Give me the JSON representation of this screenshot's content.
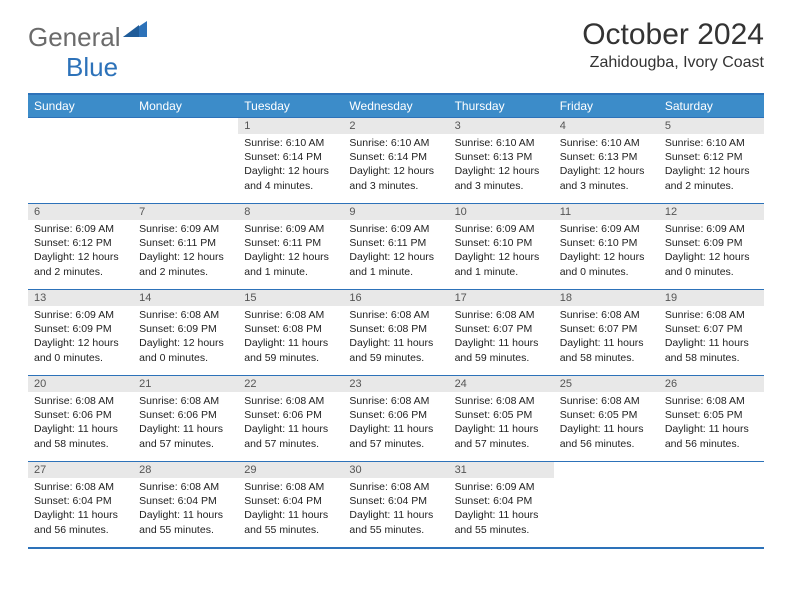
{
  "logo": {
    "word1": "General",
    "word2": "Blue"
  },
  "title": "October 2024",
  "location": "Zahidougba, Ivory Coast",
  "colors": {
    "header_bg": "#3c8cc9",
    "border": "#2d72b9",
    "daynum_bg": "#e8e8e8",
    "logo_gray": "#6b6b6b",
    "logo_blue": "#2d72b9"
  },
  "weekdays": [
    "Sunday",
    "Monday",
    "Tuesday",
    "Wednesday",
    "Thursday",
    "Friday",
    "Saturday"
  ],
  "weeks": [
    [
      null,
      null,
      {
        "n": "1",
        "sunrise": "6:10 AM",
        "sunset": "6:14 PM",
        "daylight": "12 hours and 4 minutes."
      },
      {
        "n": "2",
        "sunrise": "6:10 AM",
        "sunset": "6:14 PM",
        "daylight": "12 hours and 3 minutes."
      },
      {
        "n": "3",
        "sunrise": "6:10 AM",
        "sunset": "6:13 PM",
        "daylight": "12 hours and 3 minutes."
      },
      {
        "n": "4",
        "sunrise": "6:10 AM",
        "sunset": "6:13 PM",
        "daylight": "12 hours and 3 minutes."
      },
      {
        "n": "5",
        "sunrise": "6:10 AM",
        "sunset": "6:12 PM",
        "daylight": "12 hours and 2 minutes."
      }
    ],
    [
      {
        "n": "6",
        "sunrise": "6:09 AM",
        "sunset": "6:12 PM",
        "daylight": "12 hours and 2 minutes."
      },
      {
        "n": "7",
        "sunrise": "6:09 AM",
        "sunset": "6:11 PM",
        "daylight": "12 hours and 2 minutes."
      },
      {
        "n": "8",
        "sunrise": "6:09 AM",
        "sunset": "6:11 PM",
        "daylight": "12 hours and 1 minute."
      },
      {
        "n": "9",
        "sunrise": "6:09 AM",
        "sunset": "6:11 PM",
        "daylight": "12 hours and 1 minute."
      },
      {
        "n": "10",
        "sunrise": "6:09 AM",
        "sunset": "6:10 PM",
        "daylight": "12 hours and 1 minute."
      },
      {
        "n": "11",
        "sunrise": "6:09 AM",
        "sunset": "6:10 PM",
        "daylight": "12 hours and 0 minutes."
      },
      {
        "n": "12",
        "sunrise": "6:09 AM",
        "sunset": "6:09 PM",
        "daylight": "12 hours and 0 minutes."
      }
    ],
    [
      {
        "n": "13",
        "sunrise": "6:09 AM",
        "sunset": "6:09 PM",
        "daylight": "12 hours and 0 minutes."
      },
      {
        "n": "14",
        "sunrise": "6:08 AM",
        "sunset": "6:09 PM",
        "daylight": "12 hours and 0 minutes."
      },
      {
        "n": "15",
        "sunrise": "6:08 AM",
        "sunset": "6:08 PM",
        "daylight": "11 hours and 59 minutes."
      },
      {
        "n": "16",
        "sunrise": "6:08 AM",
        "sunset": "6:08 PM",
        "daylight": "11 hours and 59 minutes."
      },
      {
        "n": "17",
        "sunrise": "6:08 AM",
        "sunset": "6:07 PM",
        "daylight": "11 hours and 59 minutes."
      },
      {
        "n": "18",
        "sunrise": "6:08 AM",
        "sunset": "6:07 PM",
        "daylight": "11 hours and 58 minutes."
      },
      {
        "n": "19",
        "sunrise": "6:08 AM",
        "sunset": "6:07 PM",
        "daylight": "11 hours and 58 minutes."
      }
    ],
    [
      {
        "n": "20",
        "sunrise": "6:08 AM",
        "sunset": "6:06 PM",
        "daylight": "11 hours and 58 minutes."
      },
      {
        "n": "21",
        "sunrise": "6:08 AM",
        "sunset": "6:06 PM",
        "daylight": "11 hours and 57 minutes."
      },
      {
        "n": "22",
        "sunrise": "6:08 AM",
        "sunset": "6:06 PM",
        "daylight": "11 hours and 57 minutes."
      },
      {
        "n": "23",
        "sunrise": "6:08 AM",
        "sunset": "6:06 PM",
        "daylight": "11 hours and 57 minutes."
      },
      {
        "n": "24",
        "sunrise": "6:08 AM",
        "sunset": "6:05 PM",
        "daylight": "11 hours and 57 minutes."
      },
      {
        "n": "25",
        "sunrise": "6:08 AM",
        "sunset": "6:05 PM",
        "daylight": "11 hours and 56 minutes."
      },
      {
        "n": "26",
        "sunrise": "6:08 AM",
        "sunset": "6:05 PM",
        "daylight": "11 hours and 56 minutes."
      }
    ],
    [
      {
        "n": "27",
        "sunrise": "6:08 AM",
        "sunset": "6:04 PM",
        "daylight": "11 hours and 56 minutes."
      },
      {
        "n": "28",
        "sunrise": "6:08 AM",
        "sunset": "6:04 PM",
        "daylight": "11 hours and 55 minutes."
      },
      {
        "n": "29",
        "sunrise": "6:08 AM",
        "sunset": "6:04 PM",
        "daylight": "11 hours and 55 minutes."
      },
      {
        "n": "30",
        "sunrise": "6:08 AM",
        "sunset": "6:04 PM",
        "daylight": "11 hours and 55 minutes."
      },
      {
        "n": "31",
        "sunrise": "6:09 AM",
        "sunset": "6:04 PM",
        "daylight": "11 hours and 55 minutes."
      },
      null,
      null
    ]
  ],
  "labels": {
    "sunrise": "Sunrise:",
    "sunset": "Sunset:",
    "daylight": "Daylight:"
  }
}
